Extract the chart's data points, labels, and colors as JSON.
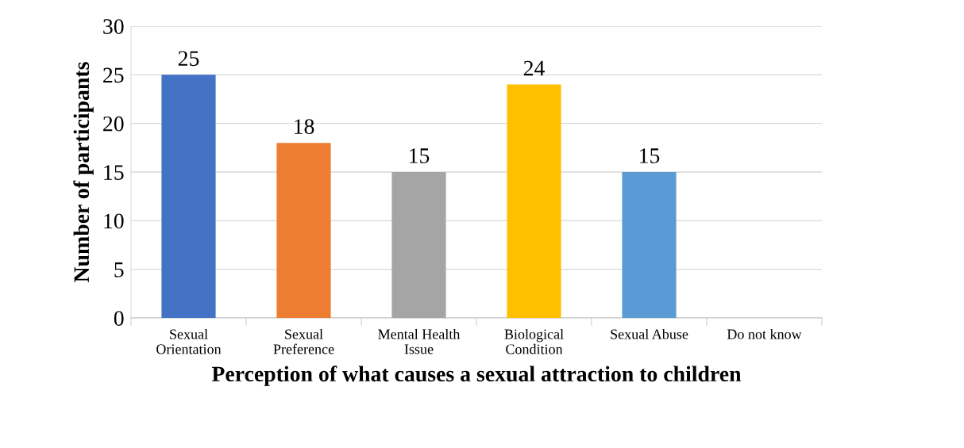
{
  "chart_data": {
    "type": "bar",
    "xlabel": "Perception of what causes a sexual attraction to children",
    "ylabel": "Number of participants",
    "categories": [
      "Sexual\nOrientation",
      "Sexual\nPreference",
      "Mental Health\nIssue",
      "Biological\nCondition",
      "Sexual Abuse",
      "Do not know"
    ],
    "values": [
      25,
      18,
      15,
      24,
      15,
      0
    ],
    "colors": [
      "#4472c4",
      "#ed7d31",
      "#a5a5a5",
      "#ffc000",
      "#5b9bd5",
      "#70ad47"
    ],
    "value_labels": [
      "25",
      "18",
      "15",
      "24",
      "15",
      null
    ],
    "ylim": [
      0,
      30
    ],
    "yticks": [
      0,
      5,
      10,
      15,
      20,
      25,
      30
    ],
    "grid": "y",
    "legend": false
  }
}
